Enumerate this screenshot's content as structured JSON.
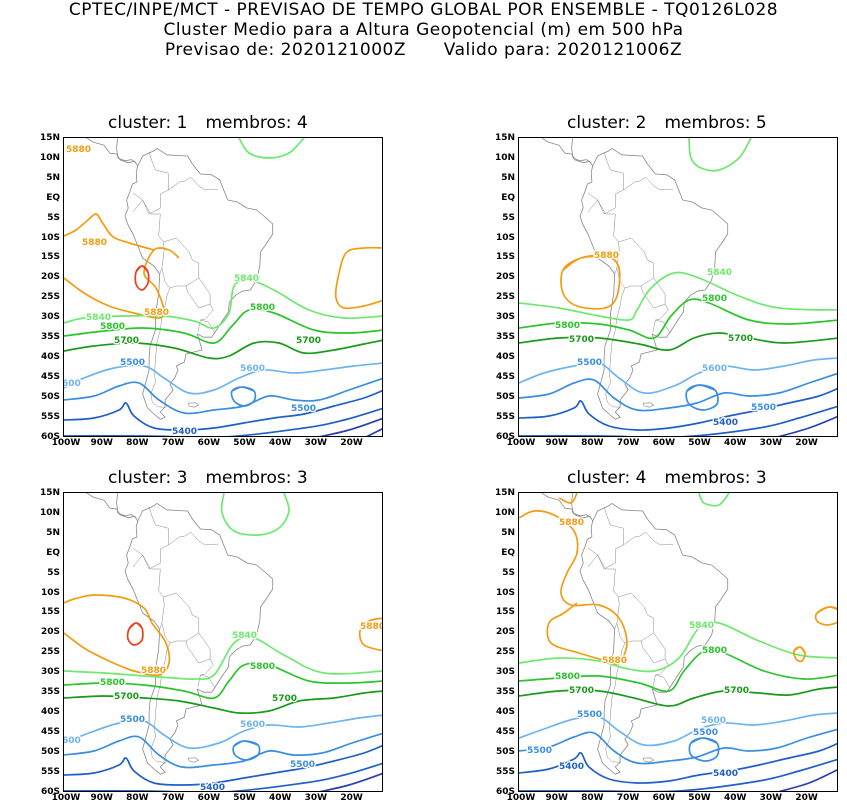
{
  "header": {
    "line1": "CPTEC/INPE/MCT - PREVISAO DE TEMPO GLOBAL POR ENSEMBLE - TQ0126L028",
    "line2": "Cluster Medio para a Altura Geopotencial (m) em 500 hPa",
    "line3_left": "Previsao de: 2020121000Z",
    "line3_right": "Valido para: 2020121006Z"
  },
  "axes": {
    "lat_ticks": [
      "15N",
      "10N",
      "5N",
      "EQ",
      "5S",
      "10S",
      "15S",
      "20S",
      "25S",
      "30S",
      "35S",
      "40S",
      "45S",
      "50S",
      "55S",
      "60S"
    ],
    "lon_ticks": [
      "100W",
      "90W",
      "80W",
      "70W",
      "60W",
      "50W",
      "40W",
      "30W",
      "20W"
    ]
  },
  "colors": {
    "c5880": "#f39c12",
    "c5940": "#e8401c",
    "c5840": "#6fe86f",
    "c5800": "#2cc42c",
    "c5700": "#1a9a1a",
    "c5600": "#6eb4ee",
    "c5500": "#3a8ee0",
    "c5400": "#1f5fc8",
    "c5300": "#2a3fb0",
    "coast": "#888888"
  },
  "panels": [
    {
      "cluster_label": "cluster:",
      "cluster_num": "1",
      "members_label": "membros:",
      "members_num": "4",
      "labels": {
        "l5880a": "5880",
        "l5880b": "5880",
        "l5880c": "5880",
        "l5840": "5840",
        "l5840b": "5840",
        "l5800": "5800",
        "l5800b": "5800",
        "l5700": "5700",
        "l5700b": "5700",
        "l5600": "5600",
        "l5600b": "600",
        "l5500": "5500",
        "l5500b": "5500",
        "l5400": "5400"
      }
    },
    {
      "cluster_label": "cluster:",
      "cluster_num": "2",
      "members_label": "membros:",
      "members_num": "5",
      "labels": {
        "l5880a": "5880",
        "l5840": "5840",
        "l5800": "5800",
        "l5800b": "5800",
        "l5700": "5700",
        "l5700b": "5700",
        "l5600": "5600",
        "l5500": "5500",
        "l5500b": "5500",
        "l5400": "5400"
      }
    },
    {
      "cluster_label": "cluster:",
      "cluster_num": "3",
      "members_label": "membros:",
      "members_num": "3",
      "labels": {
        "l5880a": "5880",
        "l5880b": "5880",
        "l5840": "5840",
        "l5800": "5800",
        "l5800b": "5800",
        "l5700": "5700",
        "l5700b": "5700",
        "l5600": "5600",
        "l5600b": "600",
        "l5500": "5500",
        "l5500b": "5500",
        "l5400": "5400"
      }
    },
    {
      "cluster_label": "cluster:",
      "cluster_num": "4",
      "members_label": "membros:",
      "members_num": "3",
      "labels": {
        "l5880a": "5880",
        "l5880b": "5880",
        "l5840": "5840",
        "l5800": "5800",
        "l5800b": "5800",
        "l5700": "5700",
        "l5700b": "5700",
        "l5600": "5600",
        "l5500": "5500",
        "l5500b": "5500",
        "l5500c": "5500",
        "l5400": "5400",
        "l5400b": "5400"
      }
    }
  ]
}
